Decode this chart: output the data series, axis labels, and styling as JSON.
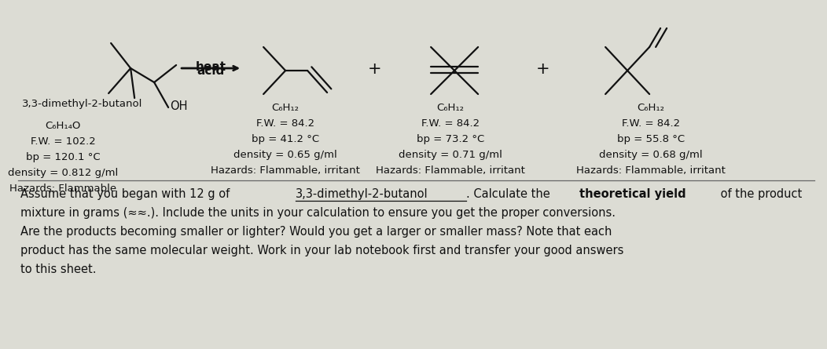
{
  "bg_color": "#dcdcd4",
  "text_fontsize": 10.5,
  "small_fontsize": 9.5,
  "reactant_label": "3,3-dimethyl-2-butanol",
  "reactant_formula": "C₆H₁₄O",
  "reactant_fw": "F.W. = 102.2",
  "reactant_bp": "bp = 120.1 °C",
  "reactant_density": "density = 0.812 g/ml",
  "reactant_hazards": "Hazards: Flammable",
  "arrow_label_top": "acid",
  "arrow_label_bot": "heat",
  "product1_formula": "C₆H₁₂",
  "product1_fw": "F.W. = 84.2",
  "product1_bp": "bp = 41.2 °C",
  "product1_density": "density = 0.65 g/ml",
  "product1_hazards": "Hazards: Flammable, irritant",
  "product2_formula": "C₆H₁₂",
  "product2_fw": "F.W. = 84.2",
  "product2_bp": "bp = 73.2 °C",
  "product2_density": "density = 0.71 g/ml",
  "product2_hazards": "Hazards: Flammable, irritant",
  "product3_formula": "C₆H₁₂",
  "product3_fw": "F.W. = 84.2",
  "product3_bp": "bp = 55.8 °C",
  "product3_density": "density = 0.68 g/ml",
  "product3_hazards": "Hazards: Flammable, irritant",
  "line_color": "#111111",
  "text_color": "#111111",
  "line1a": "Assume that you began with 12 g of ",
  "line1b": "3,3-dimethyl-2-butanol",
  "line1c": ". Calculate the ",
  "line1d": "theoretical yield",
  "line1e": " of the product",
  "line2": "mixture in grams (≈≈.). Include the units in your calculation to ensure you get the proper conversions.",
  "line3": "Are the products becoming smaller or lighter? Would you get a larger or smaller mass? Note that each",
  "line4": "product has the same molecular weight. Work in your lab notebook first and transfer your good answers",
  "line5": "to this sheet."
}
